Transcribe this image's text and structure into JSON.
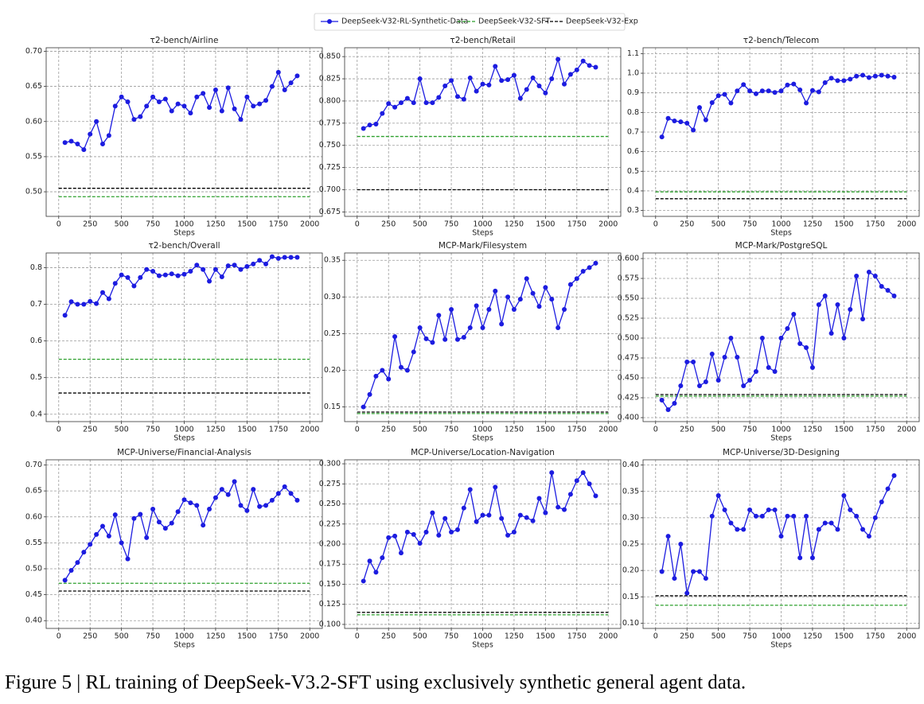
{
  "legend": [
    {
      "name": "DeepSeek-V32-RL-Synthetic-Data",
      "color": "#1c1ce0",
      "style": "solid"
    },
    {
      "name": "DeepSeek-V32-SFT",
      "color": "#2ca02c",
      "style": "dashed"
    },
    {
      "name": "DeepSeek-V32-Exp",
      "color": "#000000",
      "style": "dashed"
    }
  ],
  "caption": "Figure 5 | RL training of DeepSeek-V3.2-SFT using exclusively synthetic general agent data.",
  "chart_data": [
    {
      "type": "line",
      "title": "τ2-bench/Airline",
      "xlabel": "Steps",
      "x": [
        50,
        100,
        150,
        200,
        250,
        300,
        350,
        400,
        450,
        500,
        550,
        600,
        650,
        700,
        750,
        800,
        850,
        900,
        950,
        1000,
        1050,
        1100,
        1150,
        1200,
        1250,
        1300,
        1350,
        1400,
        1450,
        1500,
        1550,
        1600,
        1650,
        1700,
        1750,
        1800,
        1850,
        1900
      ],
      "values": [
        0.57,
        0.572,
        0.568,
        0.56,
        0.582,
        0.6,
        0.568,
        0.58,
        0.622,
        0.635,
        0.628,
        0.603,
        0.607,
        0.622,
        0.635,
        0.628,
        0.632,
        0.615,
        0.625,
        0.622,
        0.612,
        0.635,
        0.64,
        0.62,
        0.645,
        0.615,
        0.648,
        0.618,
        0.603,
        0.635,
        0.622,
        0.625,
        0.63,
        0.65,
        0.67,
        0.645,
        0.655,
        0.665
      ],
      "sft": 0.493,
      "exp": 0.505,
      "xlim": [
        -100,
        2100
      ],
      "xticks": [
        0,
        250,
        500,
        750,
        1000,
        1250,
        1500,
        1750,
        2000
      ],
      "ylim": [
        0.465,
        0.705
      ],
      "yticks": [
        {
          "value": 0.5,
          "label": "0.50"
        },
        0.55,
        {
          "value": 0.6,
          "label": "0.60"
        },
        0.65,
        {
          "value": 0.7,
          "label": "0.70"
        }
      ],
      "grid": true
    },
    {
      "type": "line",
      "title": "τ2-bench/Retail",
      "xlabel": "Steps",
      "x": [
        50,
        100,
        150,
        200,
        250,
        300,
        350,
        400,
        450,
        500,
        550,
        600,
        650,
        700,
        750,
        800,
        850,
        900,
        950,
        1000,
        1050,
        1100,
        1150,
        1200,
        1250,
        1300,
        1350,
        1400,
        1450,
        1500,
        1550,
        1600,
        1650,
        1700,
        1750,
        1800,
        1850,
        1900
      ],
      "values": [
        0.769,
        0.773,
        0.774,
        0.786,
        0.797,
        0.793,
        0.798,
        0.803,
        0.798,
        0.825,
        0.798,
        0.798,
        0.804,
        0.817,
        0.823,
        0.805,
        0.802,
        0.826,
        0.811,
        0.819,
        0.818,
        0.839,
        0.823,
        0.824,
        0.829,
        0.803,
        0.813,
        0.826,
        0.817,
        0.809,
        0.825,
        0.847,
        0.819,
        0.83,
        0.835,
        0.845,
        0.84,
        0.838
      ],
      "sft": 0.76,
      "exp": 0.7,
      "xlim": [
        -100,
        2100
      ],
      "xticks": [
        0,
        250,
        500,
        750,
        1000,
        1250,
        1500,
        1750,
        2000
      ],
      "ylim": [
        0.67,
        0.86
      ],
      "yticks": [
        0.675,
        {
          "value": 0.7,
          "label": "0.700"
        },
        0.725,
        {
          "value": 0.75,
          "label": "0.750"
        },
        0.775,
        {
          "value": 0.8,
          "label": "0.800"
        },
        0.825,
        {
          "value": 0.85,
          "label": "0.850"
        }
      ],
      "grid": true
    },
    {
      "type": "line",
      "title": "τ2-bench/Telecom",
      "xlabel": "Steps",
      "x": [
        50,
        100,
        150,
        200,
        250,
        300,
        350,
        400,
        450,
        500,
        550,
        600,
        650,
        700,
        750,
        800,
        850,
        900,
        950,
        1000,
        1050,
        1100,
        1150,
        1200,
        1250,
        1300,
        1350,
        1400,
        1450,
        1500,
        1550,
        1600,
        1650,
        1700,
        1750,
        1800,
        1850,
        1900
      ],
      "values": [
        0.675,
        0.77,
        0.757,
        0.752,
        0.745,
        0.71,
        0.825,
        0.762,
        0.85,
        0.885,
        0.892,
        0.848,
        0.91,
        0.942,
        0.91,
        0.895,
        0.91,
        0.91,
        0.902,
        0.91,
        0.94,
        0.945,
        0.915,
        0.848,
        0.912,
        0.905,
        0.952,
        0.975,
        0.962,
        0.962,
        0.97,
        0.985,
        0.99,
        0.978,
        0.985,
        0.99,
        0.985,
        0.98
      ],
      "sft": 0.395,
      "exp": 0.36,
      "xlim": [
        -100,
        2100
      ],
      "xticks": [
        0,
        250,
        500,
        750,
        1000,
        1250,
        1500,
        1750,
        2000
      ],
      "ylim": [
        0.27,
        1.13
      ],
      "yticks": [
        0.3,
        0.4,
        0.5,
        0.6,
        0.7,
        0.8,
        0.9,
        {
          "value": 1.0,
          "label": "1.0"
        },
        1.1
      ],
      "grid": true
    },
    {
      "type": "line",
      "title": "τ2-bench/Overall",
      "xlabel": "Steps",
      "x": [
        50,
        100,
        150,
        200,
        250,
        300,
        350,
        400,
        450,
        500,
        550,
        600,
        650,
        700,
        750,
        800,
        850,
        900,
        950,
        1000,
        1050,
        1100,
        1150,
        1200,
        1250,
        1300,
        1350,
        1400,
        1450,
        1500,
        1550,
        1600,
        1650,
        1700,
        1750,
        1800,
        1850,
        1900
      ],
      "values": [
        0.67,
        0.707,
        0.7,
        0.7,
        0.708,
        0.702,
        0.732,
        0.715,
        0.757,
        0.78,
        0.773,
        0.75,
        0.773,
        0.795,
        0.79,
        0.778,
        0.78,
        0.783,
        0.778,
        0.782,
        0.79,
        0.807,
        0.795,
        0.763,
        0.795,
        0.775,
        0.805,
        0.807,
        0.795,
        0.803,
        0.81,
        0.82,
        0.81,
        0.83,
        0.825,
        0.828,
        0.828,
        0.828
      ],
      "sft": 0.55,
      "exp": 0.458,
      "xlim": [
        -100,
        2100
      ],
      "xticks": [
        0,
        250,
        500,
        750,
        1000,
        1250,
        1500,
        1750,
        2000
      ],
      "ylim": [
        0.38,
        0.84
      ],
      "yticks": [
        0.4,
        0.5,
        0.6,
        0.7,
        0.8
      ],
      "grid": true
    },
    {
      "type": "line",
      "title": "MCP-Mark/Filesystem",
      "xlabel": "Steps",
      "x": [
        50,
        100,
        150,
        200,
        250,
        300,
        350,
        400,
        450,
        500,
        550,
        600,
        650,
        700,
        750,
        800,
        850,
        900,
        950,
        1000,
        1050,
        1100,
        1150,
        1200,
        1250,
        1300,
        1350,
        1400,
        1450,
        1500,
        1550,
        1600,
        1650,
        1700,
        1750,
        1800,
        1850,
        1900
      ],
      "values": [
        0.15,
        0.167,
        0.192,
        0.2,
        0.188,
        0.246,
        0.204,
        0.2,
        0.225,
        0.258,
        0.243,
        0.238,
        0.275,
        0.242,
        0.283,
        0.242,
        0.245,
        0.258,
        0.288,
        0.258,
        0.283,
        0.308,
        0.263,
        0.3,
        0.283,
        0.297,
        0.325,
        0.305,
        0.287,
        0.313,
        0.297,
        0.258,
        0.283,
        0.317,
        0.325,
        0.335,
        0.34,
        0.346
      ],
      "sft": 0.141,
      "exp": 0.143,
      "xlim": [
        -100,
        2100
      ],
      "xticks": [
        0,
        250,
        500,
        750,
        1000,
        1250,
        1500,
        1750,
        2000
      ],
      "ylim": [
        0.13,
        0.36
      ],
      "yticks": [
        0.15,
        {
          "value": 0.2,
          "label": "0.20"
        },
        0.25,
        {
          "value": 0.3,
          "label": "0.30"
        },
        0.35
      ],
      "grid": true
    },
    {
      "type": "line",
      "title": "MCP-Mark/PostgreSQL",
      "xlabel": "Steps",
      "x": [
        50,
        100,
        150,
        200,
        250,
        300,
        350,
        400,
        450,
        500,
        550,
        600,
        650,
        700,
        750,
        800,
        850,
        900,
        950,
        1000,
        1050,
        1100,
        1150,
        1200,
        1250,
        1300,
        1350,
        1400,
        1450,
        1500,
        1550,
        1600,
        1650,
        1700,
        1750,
        1800,
        1850,
        1900
      ],
      "values": [
        0.422,
        0.41,
        0.418,
        0.44,
        0.47,
        0.47,
        0.44,
        0.445,
        0.48,
        0.447,
        0.476,
        0.5,
        0.476,
        0.44,
        0.447,
        0.458,
        0.5,
        0.463,
        0.458,
        0.5,
        0.512,
        0.53,
        0.493,
        0.488,
        0.463,
        0.542,
        0.553,
        0.506,
        0.542,
        0.5,
        0.536,
        0.578,
        0.524,
        0.583,
        0.578,
        0.565,
        0.56,
        0.553
      ],
      "sft": 0.427,
      "exp": 0.429,
      "xlim": [
        -100,
        2100
      ],
      "xticks": [
        0,
        250,
        500,
        750,
        1000,
        1250,
        1500,
        1750,
        2000
      ],
      "ylim": [
        0.395,
        0.607
      ],
      "yticks": [
        {
          "value": 0.4,
          "label": "0.400"
        },
        0.425,
        {
          "value": 0.45,
          "label": "0.450"
        },
        0.475,
        {
          "value": 0.5,
          "label": "0.500"
        },
        0.525,
        {
          "value": 0.55,
          "label": "0.550"
        },
        0.575,
        {
          "value": 0.6,
          "label": "0.600"
        }
      ],
      "grid": true
    },
    {
      "type": "line",
      "title": "MCP-Universe/Financial-Analysis",
      "xlabel": "Steps",
      "x": [
        50,
        100,
        150,
        200,
        250,
        300,
        350,
        400,
        450,
        500,
        550,
        600,
        650,
        700,
        750,
        800,
        850,
        900,
        950,
        1000,
        1050,
        1100,
        1150,
        1200,
        1250,
        1300,
        1350,
        1400,
        1450,
        1500,
        1550,
        1600,
        1650,
        1700,
        1750,
        1800,
        1850,
        1900
      ],
      "values": [
        0.478,
        0.497,
        0.512,
        0.532,
        0.547,
        0.566,
        0.582,
        0.563,
        0.604,
        0.55,
        0.519,
        0.597,
        0.605,
        0.56,
        0.615,
        0.59,
        0.578,
        0.588,
        0.61,
        0.633,
        0.627,
        0.622,
        0.584,
        0.615,
        0.637,
        0.653,
        0.643,
        0.668,
        0.622,
        0.612,
        0.653,
        0.62,
        0.622,
        0.632,
        0.645,
        0.658,
        0.645,
        0.632
      ],
      "sft": 0.472,
      "exp": 0.457,
      "xlim": [
        -100,
        2100
      ],
      "xticks": [
        0,
        250,
        500,
        750,
        1000,
        1250,
        1500,
        1750,
        2000
      ],
      "ylim": [
        0.385,
        0.71
      ],
      "yticks": [
        {
          "value": 0.4,
          "label": "0.40"
        },
        0.45,
        {
          "value": 0.5,
          "label": "0.50"
        },
        0.55,
        {
          "value": 0.6,
          "label": "0.60"
        },
        0.65,
        {
          "value": 0.7,
          "label": "0.70"
        }
      ],
      "grid": true
    },
    {
      "type": "line",
      "title": "MCP-Universe/Location-Navigation",
      "xlabel": "Steps",
      "x": [
        50,
        100,
        150,
        200,
        250,
        300,
        350,
        400,
        450,
        500,
        550,
        600,
        650,
        700,
        750,
        800,
        850,
        900,
        950,
        1000,
        1050,
        1100,
        1150,
        1200,
        1250,
        1300,
        1350,
        1400,
        1450,
        1500,
        1550,
        1600,
        1650,
        1700,
        1750,
        1800,
        1850,
        1900
      ],
      "values": [
        0.154,
        0.179,
        0.165,
        0.183,
        0.208,
        0.21,
        0.189,
        0.215,
        0.212,
        0.201,
        0.215,
        0.239,
        0.211,
        0.232,
        0.215,
        0.218,
        0.245,
        0.268,
        0.228,
        0.236,
        0.236,
        0.271,
        0.232,
        0.211,
        0.215,
        0.236,
        0.233,
        0.229,
        0.257,
        0.239,
        0.289,
        0.246,
        0.243,
        0.262,
        0.279,
        0.289,
        0.275,
        0.26
      ],
      "sft": 0.112,
      "exp": 0.115,
      "xlim": [
        -100,
        2100
      ],
      "xticks": [
        0,
        250,
        500,
        750,
        1000,
        1250,
        1500,
        1750,
        2000
      ],
      "ylim": [
        0.095,
        0.305
      ],
      "yticks": [
        {
          "value": 0.1,
          "label": "0.100"
        },
        0.125,
        {
          "value": 0.15,
          "label": "0.150"
        },
        0.175,
        {
          "value": 0.2,
          "label": "0.200"
        },
        0.225,
        {
          "value": 0.25,
          "label": "0.250"
        },
        0.275,
        {
          "value": 0.3,
          "label": "0.300"
        }
      ],
      "grid": true
    },
    {
      "type": "line",
      "title": "MCP-Universe/3D-Designing",
      "xlabel": "Steps",
      "x": [
        50,
        100,
        150,
        200,
        250,
        300,
        350,
        400,
        450,
        500,
        550,
        600,
        650,
        700,
        750,
        800,
        850,
        900,
        950,
        1000,
        1050,
        1100,
        1150,
        1200,
        1250,
        1300,
        1350,
        1400,
        1450,
        1500,
        1550,
        1600,
        1650,
        1700,
        1750,
        1800,
        1850,
        1900
      ],
      "values": [
        0.198,
        0.265,
        0.185,
        0.25,
        0.157,
        0.198,
        0.198,
        0.185,
        0.303,
        0.342,
        0.315,
        0.29,
        0.278,
        0.278,
        0.315,
        0.303,
        0.303,
        0.315,
        0.315,
        0.265,
        0.303,
        0.303,
        0.224,
        0.303,
        0.224,
        0.278,
        0.29,
        0.29,
        0.278,
        0.342,
        0.315,
        0.303,
        0.278,
        0.265,
        0.3,
        0.33,
        0.355,
        0.38
      ],
      "sft": 0.134,
      "exp": 0.152,
      "xlim": [
        -100,
        2100
      ],
      "xticks": [
        0,
        250,
        500,
        750,
        1000,
        1250,
        1500,
        1750,
        2000
      ],
      "ylim": [
        0.09,
        0.41
      ],
      "yticks": [
        {
          "value": 0.1,
          "label": "0.10"
        },
        0.15,
        {
          "value": 0.2,
          "label": "0.20"
        },
        0.25,
        {
          "value": 0.3,
          "label": "0.30"
        },
        0.35,
        {
          "value": 0.4,
          "label": "0.40"
        }
      ],
      "grid": true
    }
  ]
}
